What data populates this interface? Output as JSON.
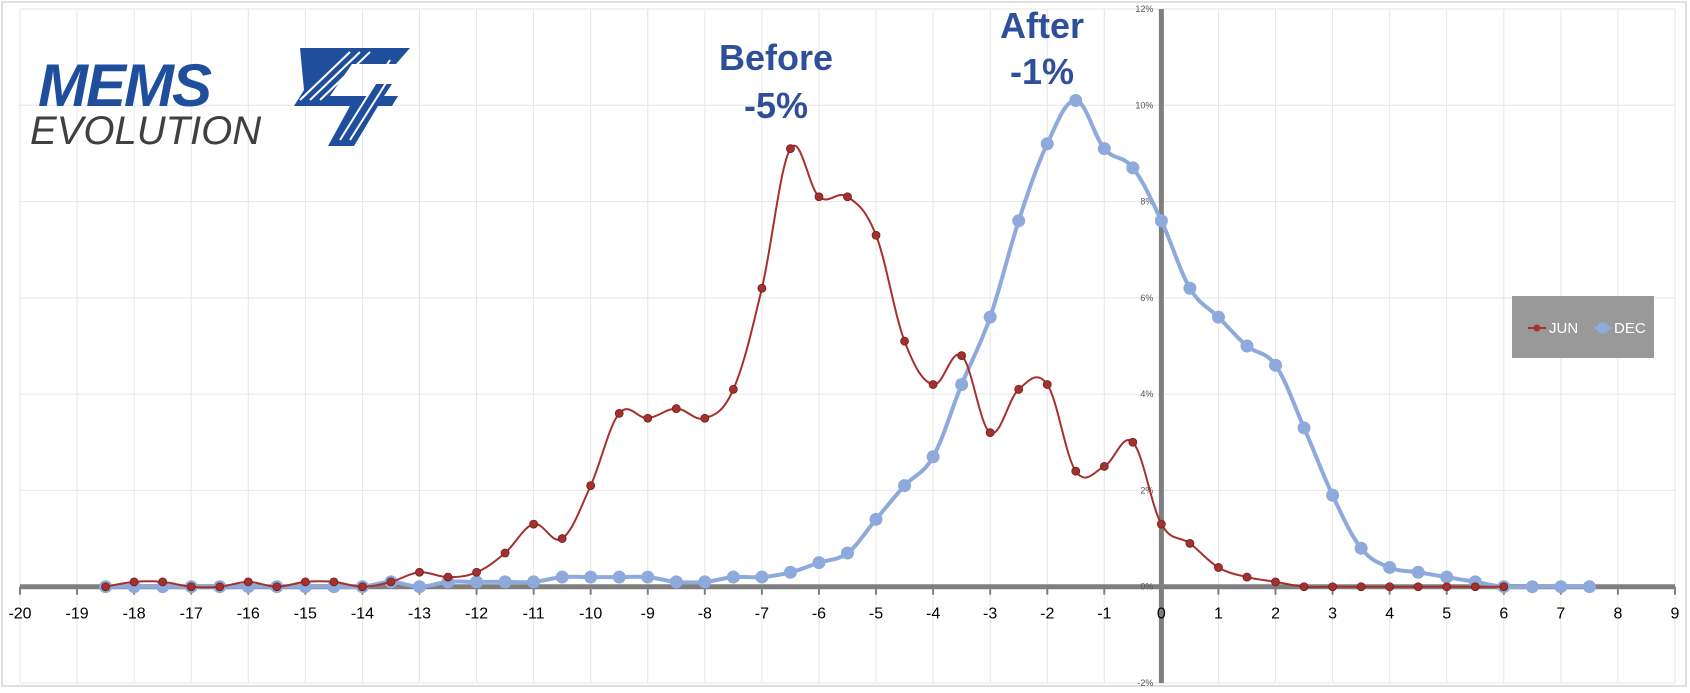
{
  "logo": {
    "line1": "MEMS",
    "line2": "EVOLUTION",
    "numeral": "4"
  },
  "chart_data": {
    "type": "line",
    "title": "",
    "xlabel": "",
    "ylabel": "",
    "xlim": [
      -20,
      9
    ],
    "ylim": [
      -2,
      12
    ],
    "x_ticks": [
      "-20",
      "-19",
      "-18",
      "-17",
      "-16",
      "-15",
      "-14",
      "-13",
      "-12",
      "-11",
      "-10",
      "-9",
      "-8",
      "-7",
      "-6",
      "-5",
      "-4",
      "-3",
      "-2",
      "-1",
      "0",
      "1",
      "2",
      "3",
      "4",
      "5",
      "6",
      "7",
      "8",
      "9"
    ],
    "y_ticks": [
      "-2%",
      "0%",
      "2%",
      "4%",
      "6%",
      "8%",
      "10%",
      "12%"
    ],
    "grid": true,
    "legend_position": "right",
    "legend": [
      "JUN",
      "DEC"
    ],
    "annotations": [
      {
        "line1": "Before",
        "line2": "-5%"
      },
      {
        "line1": "After",
        "line2": "-1%"
      }
    ],
    "series": [
      {
        "name": "JUN",
        "color": "#A5312E",
        "points": [
          [
            -18.5,
            0.0
          ],
          [
            -18,
            0.1
          ],
          [
            -17.5,
            0.1
          ],
          [
            -17,
            0.0
          ],
          [
            -16.5,
            0.0
          ],
          [
            -16,
            0.1
          ],
          [
            -15.5,
            0.0
          ],
          [
            -15,
            0.1
          ],
          [
            -14.5,
            0.1
          ],
          [
            -14,
            0.0
          ],
          [
            -13.5,
            0.1
          ],
          [
            -13,
            0.3
          ],
          [
            -12.5,
            0.2
          ],
          [
            -12,
            0.3
          ],
          [
            -11.5,
            0.7
          ],
          [
            -11,
            1.3
          ],
          [
            -10.5,
            1.0
          ],
          [
            -10,
            2.1
          ],
          [
            -9.5,
            3.6
          ],
          [
            -9,
            3.5
          ],
          [
            -8.5,
            3.7
          ],
          [
            -8,
            3.5
          ],
          [
            -7.5,
            4.1
          ],
          [
            -7,
            6.2
          ],
          [
            -6.5,
            9.1
          ],
          [
            -6,
            8.1
          ],
          [
            -5.5,
            8.1
          ],
          [
            -5,
            7.3
          ],
          [
            -4.5,
            5.1
          ],
          [
            -4,
            4.2
          ],
          [
            -3.5,
            4.8
          ],
          [
            -3,
            3.2
          ],
          [
            -2.5,
            4.1
          ],
          [
            -2,
            4.2
          ],
          [
            -1.5,
            2.4
          ],
          [
            -1,
            2.5
          ],
          [
            -0.5,
            3.0
          ],
          [
            0,
            1.3
          ],
          [
            0.5,
            0.9
          ],
          [
            1,
            0.4
          ],
          [
            1.5,
            0.2
          ],
          [
            2,
            0.1
          ],
          [
            2.5,
            0.0
          ],
          [
            3,
            0.0
          ],
          [
            3.5,
            0.0
          ],
          [
            4,
            0.0
          ],
          [
            4.5,
            0.0
          ],
          [
            5,
            0.0
          ],
          [
            5.5,
            0.0
          ],
          [
            6,
            0.0
          ]
        ]
      },
      {
        "name": "DEC",
        "color": "#8EA9DB",
        "points": [
          [
            -18.5,
            0.0
          ],
          [
            -18,
            0.0
          ],
          [
            -17.5,
            0.0
          ],
          [
            -17,
            0.0
          ],
          [
            -16.5,
            0.0
          ],
          [
            -16,
            0.0
          ],
          [
            -15.5,
            0.0
          ],
          [
            -15,
            0.0
          ],
          [
            -14.5,
            0.0
          ],
          [
            -14,
            0.0
          ],
          [
            -13.5,
            0.1
          ],
          [
            -13,
            0.0
          ],
          [
            -12.5,
            0.1
          ],
          [
            -12,
            0.1
          ],
          [
            -11.5,
            0.1
          ],
          [
            -11,
            0.1
          ],
          [
            -10.5,
            0.2
          ],
          [
            -10,
            0.2
          ],
          [
            -9.5,
            0.2
          ],
          [
            -9,
            0.2
          ],
          [
            -8.5,
            0.1
          ],
          [
            -8,
            0.1
          ],
          [
            -7.5,
            0.2
          ],
          [
            -7,
            0.2
          ],
          [
            -6.5,
            0.3
          ],
          [
            -6,
            0.5
          ],
          [
            -5.5,
            0.7
          ],
          [
            -5,
            1.4
          ],
          [
            -4.5,
            2.1
          ],
          [
            -4,
            2.7
          ],
          [
            -3.5,
            4.2
          ],
          [
            -3,
            5.6
          ],
          [
            -2.5,
            7.6
          ],
          [
            -2,
            9.2
          ],
          [
            -1.5,
            10.1
          ],
          [
            -1,
            9.1
          ],
          [
            -0.5,
            8.7
          ],
          [
            0,
            7.6
          ],
          [
            0.5,
            6.2
          ],
          [
            1,
            5.6
          ],
          [
            1.5,
            5.0
          ],
          [
            2,
            4.6
          ],
          [
            2.5,
            3.3
          ],
          [
            3,
            1.9
          ],
          [
            3.5,
            0.8
          ],
          [
            4,
            0.4
          ],
          [
            4.5,
            0.3
          ],
          [
            5,
            0.2
          ],
          [
            5.5,
            0.1
          ],
          [
            6,
            0.0
          ],
          [
            6.5,
            0.0
          ],
          [
            7,
            0.0
          ],
          [
            7.5,
            0.0
          ]
        ]
      }
    ]
  }
}
